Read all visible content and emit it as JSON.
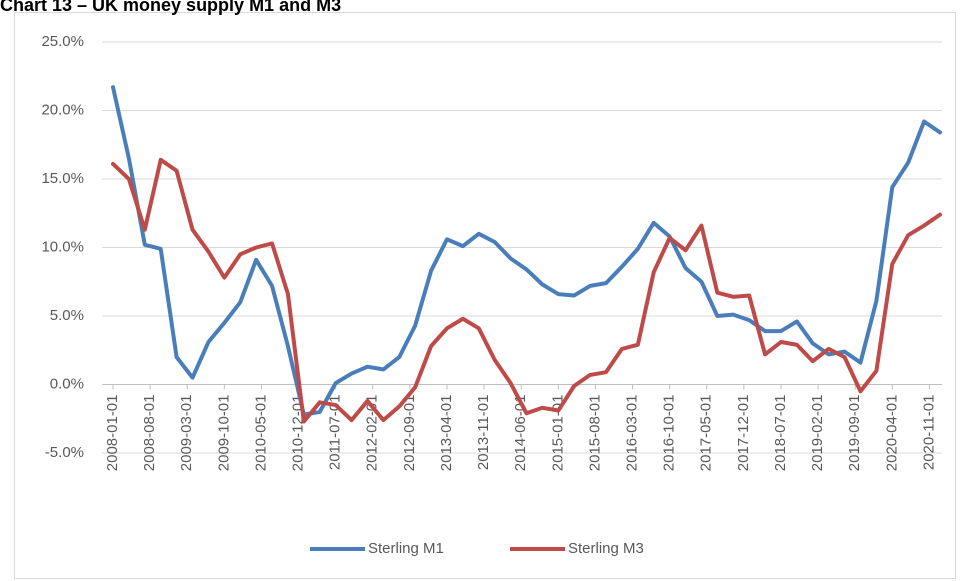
{
  "chart_data": {
    "type": "line",
    "title": "Chart 13 – UK money supply M1 and M3",
    "x": [
      "2008-01-01",
      "2008-04-01",
      "2008-07-01",
      "2008-10-01",
      "2009-01-01",
      "2009-04-01",
      "2009-07-01",
      "2009-10-01",
      "2010-01-01",
      "2010-04-01",
      "2010-07-01",
      "2010-10-01",
      "2011-01-01",
      "2011-04-01",
      "2011-07-01",
      "2011-10-01",
      "2012-01-01",
      "2012-04-01",
      "2012-07-01",
      "2012-10-01",
      "2013-01-01",
      "2013-04-01",
      "2013-07-01",
      "2013-10-01",
      "2014-01-01",
      "2014-04-01",
      "2014-07-01",
      "2014-10-01",
      "2015-01-01",
      "2015-04-01",
      "2015-07-01",
      "2015-10-01",
      "2016-01-01",
      "2016-04-01",
      "2016-07-01",
      "2016-10-01",
      "2017-01-01",
      "2017-04-01",
      "2017-07-01",
      "2017-10-01",
      "2018-01-01",
      "2018-04-01",
      "2018-07-01",
      "2018-10-01",
      "2019-01-01",
      "2019-04-01",
      "2019-07-01",
      "2019-10-01",
      "2020-01-01",
      "2020-04-01",
      "2020-07-01",
      "2020-10-01",
      "2021-01-01"
    ],
    "series": [
      {
        "name": "Sterling M1",
        "color": "#4a7ebb",
        "values": [
          21.7,
          16.5,
          10.2,
          9.9,
          2.0,
          0.5,
          3.1,
          4.5,
          6.0,
          9.1,
          7.2,
          2.8,
          -2.2,
          -2.0,
          0.1,
          0.8,
          1.3,
          1.1,
          2.0,
          4.3,
          8.3,
          10.6,
          10.1,
          11.0,
          10.4,
          9.2,
          8.4,
          7.3,
          6.6,
          6.5,
          7.2,
          7.4,
          8.6,
          9.9,
          11.8,
          10.8,
          8.5,
          7.5,
          5.0,
          5.1,
          4.7,
          3.9,
          3.9,
          4.6,
          3.0,
          2.2,
          2.4,
          1.6,
          6.1,
          14.4,
          16.2,
          19.2,
          18.4
        ]
      },
      {
        "name": "Sterling M3",
        "color": "#be4b48",
        "values": [
          16.1,
          15.0,
          11.3,
          16.4,
          15.6,
          11.3,
          9.7,
          7.8,
          9.5,
          10.0,
          10.3,
          6.6,
          -2.7,
          -1.3,
          -1.5,
          -2.6,
          -1.2,
          -2.6,
          -1.6,
          -0.2,
          2.8,
          4.1,
          4.8,
          4.1,
          1.8,
          0.1,
          -2.1,
          -1.7,
          -1.9,
          -0.1,
          0.7,
          0.9,
          2.6,
          2.9,
          8.2,
          10.7,
          9.8,
          11.6,
          6.7,
          6.4,
          6.5,
          2.2,
          3.1,
          2.9,
          1.7,
          2.6,
          2.0,
          -0.5,
          1.0,
          8.8,
          10.9,
          11.6,
          12.4
        ]
      }
    ],
    "xlim": [
      "2008-01-01",
      "2021-01-01"
    ],
    "xticks": [
      "2008-01-01",
      "2008-08-01",
      "2009-03-01",
      "2009-10-01",
      "2010-05-01",
      "2010-12-01",
      "2011-07-01",
      "2012-02-01",
      "2012-09-01",
      "2013-04-01",
      "2013-11-01",
      "2014-06-01",
      "2015-01-01",
      "2015-08-01",
      "2016-03-01",
      "2016-10-01",
      "2017-05-01",
      "2017-12-01",
      "2018-07-01",
      "2019-02-01",
      "2019-09-01",
      "2020-04-01",
      "2020-11-01"
    ],
    "ylim": [
      -5,
      25
    ],
    "yticks": [
      {
        "value": -5,
        "label": "-5.0%"
      },
      {
        "value": 0,
        "label": "0.0%"
      },
      {
        "value": 5,
        "label": "5.0%"
      },
      {
        "value": 10,
        "label": "10.0%"
      },
      {
        "value": 15,
        "label": "15.0%"
      },
      {
        "value": 20,
        "label": "20.0%"
      },
      {
        "value": 25,
        "label": "25.0%"
      }
    ],
    "grid": true,
    "legend": "bottom"
  }
}
